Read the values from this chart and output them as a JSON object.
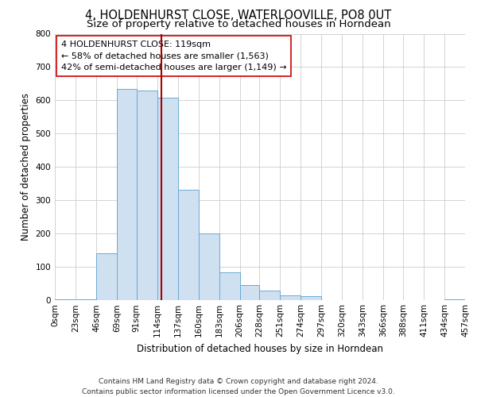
{
  "title": "4, HOLDENHURST CLOSE, WATERLOOVILLE, PO8 0UT",
  "subtitle": "Size of property relative to detached houses in Horndean",
  "xlabel": "Distribution of detached houses by size in Horndean",
  "ylabel": "Number of detached properties",
  "bin_edges": [
    0,
    23,
    46,
    69,
    91,
    114,
    137,
    160,
    183,
    206,
    228,
    251,
    274,
    297,
    320,
    343,
    366,
    388,
    411,
    434,
    457
  ],
  "bin_labels": [
    "0sqm",
    "23sqm",
    "46sqm",
    "69sqm",
    "91sqm",
    "114sqm",
    "137sqm",
    "160sqm",
    "183sqm",
    "206sqm",
    "228sqm",
    "251sqm",
    "274sqm",
    "297sqm",
    "320sqm",
    "343sqm",
    "366sqm",
    "388sqm",
    "411sqm",
    "434sqm",
    "457sqm"
  ],
  "counts": [
    2,
    2,
    140,
    635,
    630,
    607,
    330,
    200,
    83,
    44,
    27,
    12,
    10,
    0,
    0,
    0,
    0,
    0,
    0,
    2
  ],
  "bar_facecolor": "#cfe0f0",
  "bar_edgecolor": "#6aaad4",
  "vline_x": 119,
  "vline_color": "#aa0000",
  "annotation_line1": "4 HOLDENHURST CLOSE: 119sqm",
  "annotation_line2": "← 58% of detached houses are smaller (1,563)",
  "annotation_line3": "42% of semi-detached houses are larger (1,149) →",
  "annotation_box_edgecolor": "#cc0000",
  "annotation_box_facecolor": "#ffffff",
  "ylim": [
    0,
    800
  ],
  "yticks": [
    0,
    100,
    200,
    300,
    400,
    500,
    600,
    700,
    800
  ],
  "footer_line1": "Contains HM Land Registry data © Crown copyright and database right 2024.",
  "footer_line2": "Contains public sector information licensed under the Open Government Licence v3.0.",
  "background_color": "#ffffff",
  "grid_color": "#cccccc",
  "title_fontsize": 10.5,
  "subtitle_fontsize": 9.5,
  "axis_label_fontsize": 8.5,
  "tick_fontsize": 7.5,
  "annotation_fontsize": 8,
  "footer_fontsize": 6.5
}
